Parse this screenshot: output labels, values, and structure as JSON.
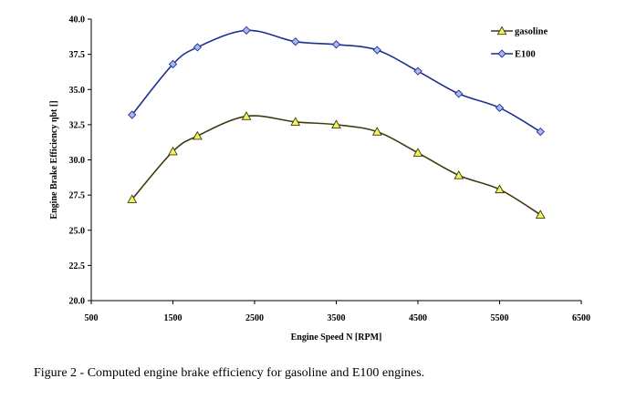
{
  "chart_data": {
    "type": "line",
    "xlabel": "Engine Speed N [RPM]",
    "ylabel": "Engine Brake Efficiency ηbt []",
    "xlim": [
      500,
      6500
    ],
    "ylim": [
      20.0,
      40.0
    ],
    "x_ticks": [
      "500",
      "1500",
      "2500",
      "3500",
      "4500",
      "5500",
      "6500"
    ],
    "y_ticks": [
      "20.0",
      "22.5",
      "25.0",
      "27.5",
      "30.0",
      "32.5",
      "35.0",
      "37.5",
      "40.0"
    ],
    "legend_position": "top-right",
    "grid": false,
    "series": [
      {
        "name": "gasoline",
        "marker": "triangle",
        "color": "#3b3b0e",
        "marker_fill": "#f2f25e",
        "x": [
          1000,
          1500,
          1800,
          2400,
          3000,
          3500,
          4000,
          4500,
          5000,
          5500,
          6000
        ],
        "values": [
          27.2,
          30.6,
          31.7,
          33.1,
          32.7,
          32.5,
          32.0,
          30.5,
          28.9,
          27.9,
          26.1
        ]
      },
      {
        "name": "E100",
        "marker": "diamond",
        "color": "#1f2f8f",
        "marker_fill": "#a9b8f2",
        "x": [
          1000,
          1500,
          1800,
          2400,
          3000,
          3500,
          4000,
          4500,
          5000,
          5500,
          6000
        ],
        "values": [
          33.2,
          36.8,
          38.0,
          39.2,
          38.4,
          38.2,
          37.8,
          36.3,
          34.7,
          33.7,
          32.0
        ]
      }
    ]
  },
  "caption": "Figure 2 - Computed engine brake efficiency for gasoline and E100 engines."
}
